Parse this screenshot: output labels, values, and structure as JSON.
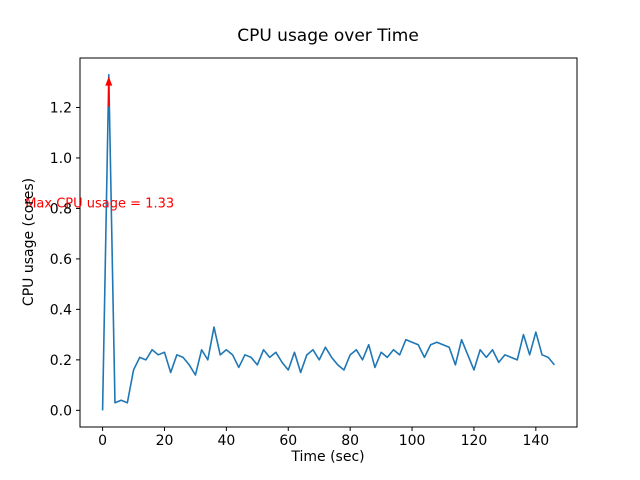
{
  "figure": {
    "title": "CPU usage over Time"
  },
  "chart_data": {
    "type": "line",
    "title": "CPU usage over Time",
    "xlabel": "Time (sec)",
    "ylabel": "CPU usage (cores)",
    "grid": false,
    "legend": "none",
    "line_color": "#1f77b4",
    "xlim": [
      -7.3,
      153.3
    ],
    "ylim": [
      -0.066,
      1.396
    ],
    "xticks": [
      0,
      20,
      40,
      60,
      80,
      100,
      120,
      140
    ],
    "yticks": [
      0.0,
      0.2,
      0.4,
      0.6,
      0.8,
      1.0,
      1.2
    ],
    "x": [
      0,
      2,
      4,
      6,
      8,
      10,
      12,
      14,
      16,
      18,
      20,
      22,
      24,
      26,
      28,
      30,
      32,
      34,
      36,
      38,
      40,
      42,
      44,
      46,
      48,
      50,
      52,
      54,
      56,
      58,
      60,
      62,
      64,
      66,
      68,
      70,
      72,
      74,
      76,
      78,
      80,
      82,
      84,
      86,
      88,
      90,
      92,
      94,
      96,
      98,
      100,
      102,
      104,
      106,
      108,
      110,
      112,
      114,
      116,
      118,
      120,
      122,
      124,
      126,
      128,
      130,
      132,
      134,
      136,
      138,
      140,
      142,
      144,
      146
    ],
    "series": [
      {
        "name": "CPU usage",
        "color": "#1f77b4",
        "values": [
          0.0,
          1.33,
          0.03,
          0.04,
          0.03,
          0.16,
          0.21,
          0.2,
          0.24,
          0.22,
          0.23,
          0.15,
          0.22,
          0.21,
          0.18,
          0.14,
          0.24,
          0.2,
          0.33,
          0.22,
          0.24,
          0.22,
          0.17,
          0.22,
          0.21,
          0.18,
          0.24,
          0.21,
          0.23,
          0.19,
          0.16,
          0.23,
          0.15,
          0.22,
          0.24,
          0.2,
          0.25,
          0.21,
          0.18,
          0.16,
          0.22,
          0.24,
          0.2,
          0.26,
          0.17,
          0.23,
          0.21,
          0.24,
          0.22,
          0.28,
          0.27,
          0.26,
          0.21,
          0.26,
          0.27,
          0.26,
          0.25,
          0.18,
          0.28,
          0.22,
          0.16,
          0.24,
          0.21,
          0.24,
          0.19,
          0.22,
          0.21,
          0.2,
          0.3,
          0.22,
          0.31,
          0.22,
          0.21,
          0.18
        ]
      }
    ],
    "annotation": {
      "text": "Max CPU usage = 1.33",
      "color": "#ff0000",
      "xy": [
        2,
        1.33
      ],
      "text_pos": [
        -25,
        0.82
      ]
    }
  }
}
